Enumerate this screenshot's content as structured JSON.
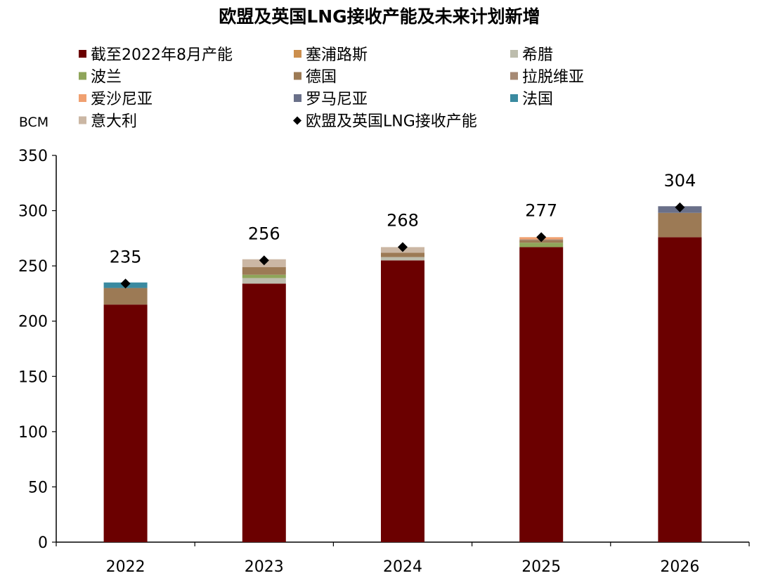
{
  "chart_data": {
    "type": "bar",
    "stacked": true,
    "title": "欧盟及英国LNG接收产能及未来计划新增",
    "unit_label": "BCM",
    "xlabel": "",
    "ylabel": "",
    "ylim": [
      0,
      350
    ],
    "yticks": [
      0,
      50,
      100,
      150,
      200,
      250,
      300,
      350
    ],
    "grid": false,
    "legend_position": "top",
    "categories": [
      "2022",
      "2023",
      "2024",
      "2025",
      "2026"
    ],
    "series": [
      {
        "name": "截至2022年8月产能",
        "color": "#6b0000",
        "values": [
          215,
          234,
          255,
          267,
          276
        ]
      },
      {
        "name": "塞浦路斯",
        "color": "#cc8f4e",
        "values": [
          0,
          0,
          0,
          0,
          0
        ]
      },
      {
        "name": "希腊",
        "color": "#bdbdad",
        "values": [
          0,
          5,
          3,
          0,
          0
        ]
      },
      {
        "name": "波兰",
        "color": "#8fa55a",
        "values": [
          0,
          3,
          0,
          4,
          0
        ]
      },
      {
        "name": "德国",
        "color": "#9c7a55",
        "values": [
          15,
          7,
          4,
          2,
          22
        ]
      },
      {
        "name": "拉脱维亚",
        "color": "#a68a74",
        "values": [
          0,
          0,
          0,
          1,
          0
        ]
      },
      {
        "name": "爱沙尼亚",
        "color": "#f0a070",
        "values": [
          0,
          0,
          0,
          2,
          0
        ]
      },
      {
        "name": "罗马尼亚",
        "color": "#6a7089",
        "values": [
          0,
          0,
          0,
          0,
          6
        ]
      },
      {
        "name": "法国",
        "color": "#3a8aa0",
        "values": [
          5,
          0,
          0,
          0,
          0
        ]
      },
      {
        "name": "意大利",
        "color": "#cbb7a4",
        "values": [
          0,
          7,
          5,
          0,
          0
        ]
      }
    ],
    "markers": {
      "name": "欧盟及英国LNG接收产能",
      "values": [
        234,
        255,
        267,
        276,
        303
      ]
    },
    "data_labels": [
      "235",
      "256",
      "268",
      "277",
      "304"
    ]
  }
}
